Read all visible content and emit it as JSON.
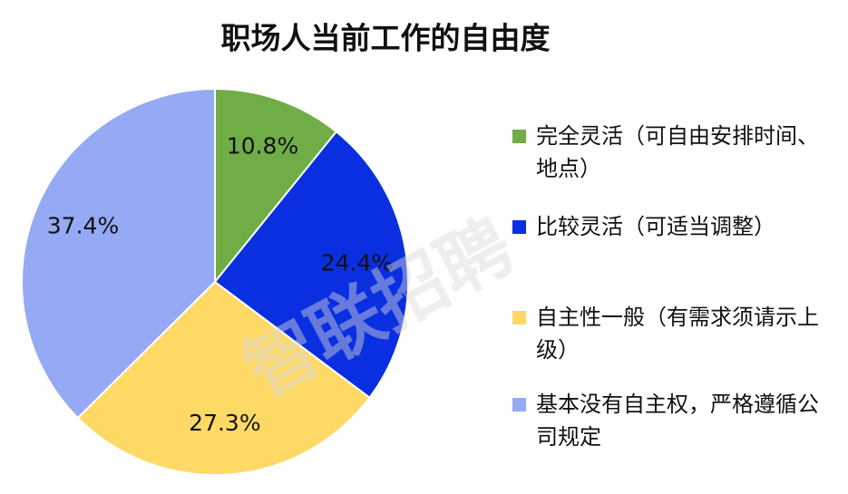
{
  "chart_data": {
    "type": "pie",
    "title": "职场人当前工作的自由度",
    "categories": [
      "完全灵活（可自由安排时间、地点）",
      "比较灵活（可适当调整）",
      "自主性一般（有需求须请示上级）",
      "基本没有自主权，严格遵循公司规定"
    ],
    "values": [
      10.8,
      24.4,
      27.3,
      37.4
    ],
    "value_labels": [
      "10.8%",
      "24.4%",
      "27.3%",
      "37.4%"
    ],
    "colors": [
      "#70ad47",
      "#0a2fe0",
      "#ffd966",
      "#95a9f5"
    ],
    "watermark": "智联招聘"
  }
}
